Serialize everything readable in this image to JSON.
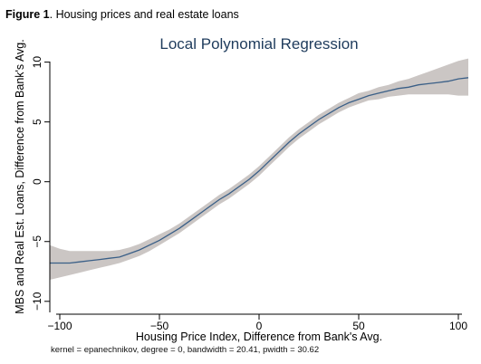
{
  "caption": {
    "label": "Figure 1",
    "text": ". Housing prices and real estate loans"
  },
  "footnote": "kernel = epanechnikov, degree = 0, bandwidth = 20.41, pwidth = 30.62",
  "colors": {
    "line": "#3a5f87",
    "band": "#cbc6c4",
    "axis": "#000000",
    "title": "#1e3b5c"
  },
  "chart_data": {
    "type": "line",
    "title": "Local Polynomial Regression",
    "xlabel": "Housing Price Index, Difference from Bank's Avg.",
    "ylabel": "MBS and Real Est. Loans, Difference from Bank's Avg.",
    "xlim": [
      -105,
      105
    ],
    "ylim": [
      -11,
      10.5
    ],
    "x_ticks": [
      -100,
      -50,
      0,
      50,
      100
    ],
    "x_tick_labels": [
      "−100",
      "−50",
      "0",
      "50",
      "100"
    ],
    "y_ticks": [
      -10,
      -5,
      0,
      5,
      10
    ],
    "y_tick_labels": [
      "−10",
      "−5",
      "0",
      "5",
      "10"
    ],
    "grid": false,
    "legend": "none",
    "series": [
      {
        "x": [
          -105,
          -100,
          -95,
          -90,
          -85,
          -80,
          -75,
          -70,
          -65,
          -60,
          -55,
          -50,
          -45,
          -40,
          -35,
          -30,
          -25,
          -20,
          -15,
          -10,
          -5,
          0,
          5,
          10,
          15,
          20,
          25,
          30,
          35,
          40,
          45,
          50,
          55,
          60,
          65,
          70,
          75,
          80,
          85,
          90,
          95,
          100,
          105
        ],
        "y": [
          -6.8,
          -6.8,
          -6.8,
          -6.7,
          -6.6,
          -6.5,
          -6.4,
          -6.3,
          -6.0,
          -5.7,
          -5.3,
          -4.9,
          -4.4,
          -3.9,
          -3.3,
          -2.7,
          -2.1,
          -1.5,
          -1.0,
          -0.4,
          0.2,
          0.9,
          1.7,
          2.5,
          3.3,
          4.0,
          4.6,
          5.2,
          5.7,
          6.2,
          6.6,
          6.9,
          7.2,
          7.4,
          7.6,
          7.8,
          7.9,
          8.1,
          8.2,
          8.3,
          8.4,
          8.6,
          8.7
        ],
        "ci_lower": [
          -8.2,
          -8.0,
          -7.8,
          -7.6,
          -7.4,
          -7.2,
          -7.0,
          -6.8,
          -6.5,
          -6.2,
          -5.8,
          -5.3,
          -4.8,
          -4.3,
          -3.7,
          -3.1,
          -2.5,
          -1.9,
          -1.4,
          -0.8,
          -0.2,
          0.5,
          1.3,
          2.1,
          2.9,
          3.6,
          4.2,
          4.8,
          5.3,
          5.8,
          6.2,
          6.5,
          6.8,
          6.9,
          7.1,
          7.2,
          7.3,
          7.3,
          7.3,
          7.3,
          7.3,
          7.2,
          7.2
        ],
        "ci_upper": [
          -5.3,
          -5.6,
          -5.8,
          -5.8,
          -5.8,
          -5.8,
          -5.8,
          -5.7,
          -5.5,
          -5.2,
          -4.8,
          -4.4,
          -4.0,
          -3.5,
          -2.9,
          -2.3,
          -1.7,
          -1.1,
          -0.6,
          0.0,
          0.6,
          1.3,
          2.1,
          2.9,
          3.7,
          4.4,
          5.0,
          5.6,
          6.1,
          6.6,
          7.0,
          7.4,
          7.6,
          7.9,
          8.1,
          8.4,
          8.6,
          8.9,
          9.2,
          9.5,
          9.8,
          10.1,
          10.3
        ]
      }
    ]
  }
}
